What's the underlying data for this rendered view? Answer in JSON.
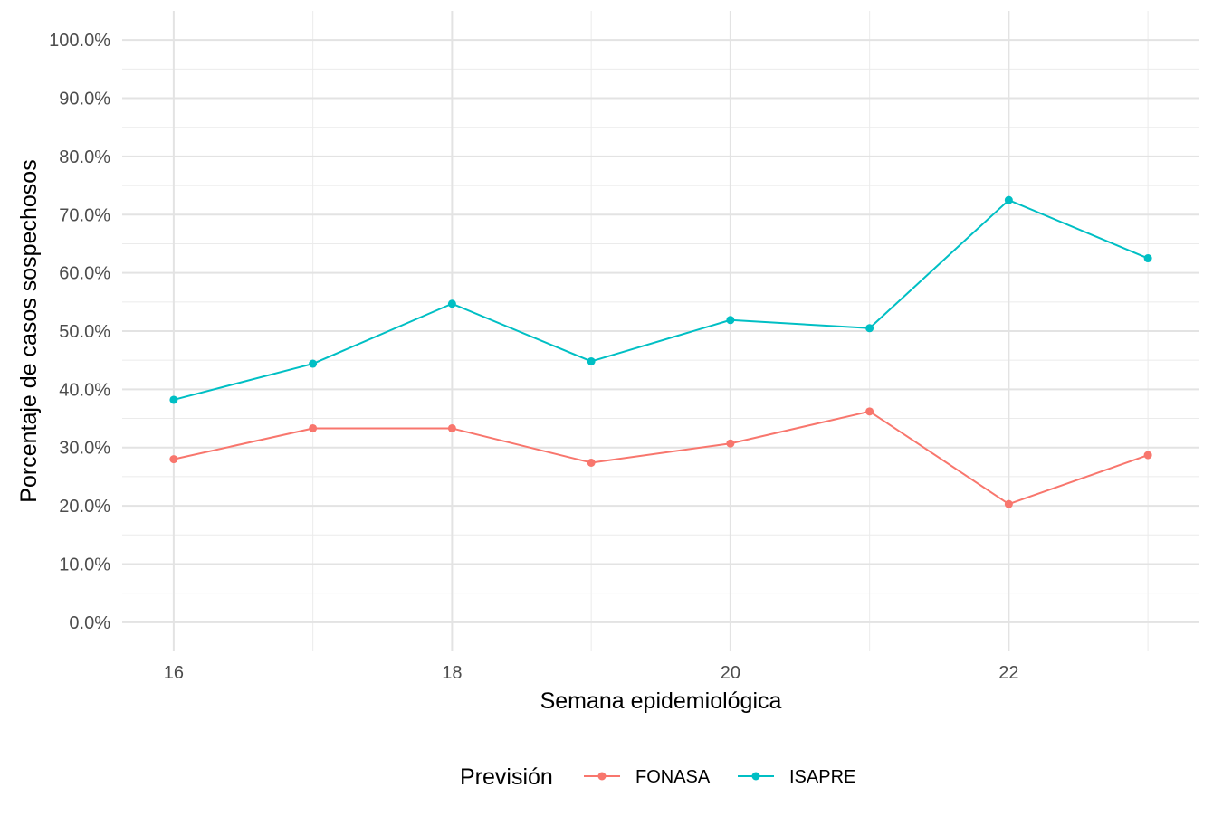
{
  "chart_data": {
    "type": "line",
    "title": "",
    "xlabel": "Semana epidemiológica",
    "ylabel": "Porcentaje de casos sospechosos",
    "x": [
      16,
      17,
      18,
      19,
      20,
      21,
      22,
      23
    ],
    "xlim": [
      15.63,
      23.37
    ],
    "xticks": [
      16,
      18,
      20,
      22
    ],
    "xtick_labels": [
      "16",
      "18",
      "20",
      "22"
    ],
    "ylim": [
      -0.05,
      1.05
    ],
    "yticks": [
      0,
      0.1,
      0.2,
      0.3,
      0.4,
      0.5,
      0.6,
      0.7,
      0.8,
      0.9,
      1.0
    ],
    "ytick_labels": [
      "0.0%",
      "10.0%",
      "20.0%",
      "30.0%",
      "40.0%",
      "50.0%",
      "60.0%",
      "70.0%",
      "80.0%",
      "90.0%",
      "100.0%"
    ],
    "grid": true,
    "legend": {
      "position": "bottom",
      "title": "Previsión"
    },
    "series": [
      {
        "name": "FONASA",
        "color": "#F8766D",
        "values": [
          0.28,
          0.333,
          0.333,
          0.274,
          0.307,
          0.362,
          0.203,
          0.287
        ]
      },
      {
        "name": "ISAPRE",
        "color": "#00BFC4",
        "values": [
          0.382,
          0.444,
          0.547,
          0.448,
          0.519,
          0.505,
          0.725,
          0.625
        ]
      }
    ]
  }
}
